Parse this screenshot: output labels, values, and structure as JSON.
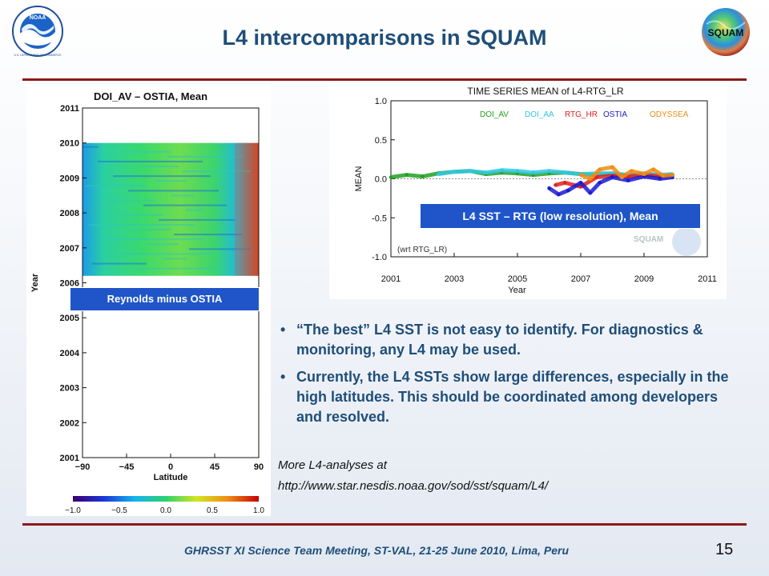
{
  "slide": {
    "title": "L4 intercomparisons in SQUAM",
    "page_number": "15",
    "footer": "GHRSST XI Science Team Meeting, ST-VAL, 21-25 June 2010, Lima, Peru"
  },
  "logos": {
    "noaa": "NOAA",
    "noaa_ring": "U.S. DEPARTMENT OF COMMERCE",
    "squam": "SQUAM"
  },
  "colors": {
    "title": "#1f4e79",
    "rule": "#8b1a1a",
    "caption_bg": "#1f55c8",
    "bullet_text": "#1f4e79"
  },
  "bullets": [
    "“The best” L4 SST is not easy to identify. For diagnostics & monitoring, any L4 may be used.",
    "Currently, the L4 SSTs show large differences, especially in the high latitudes. This should be coordinated among developers and resolved."
  ],
  "more": {
    "line1": "More L4-analyses at",
    "line2": "http://www.star.nesdis.noaa.gov/sod/sst/squam/L4/"
  },
  "chart_data": [
    {
      "type": "heatmap",
      "title": "DOI_AV – OSTIA, Mean",
      "caption": "Reynolds minus OSTIA",
      "xlabel": "Latitude",
      "ylabel": "Year",
      "x_ticks": [
        "−90",
        "−45",
        "0",
        "45",
        "90"
      ],
      "y_ticks": [
        "2011",
        "2010",
        "2009",
        "2008",
        "2007",
        "2006",
        "2005",
        "2004",
        "2003",
        "2002",
        "2001"
      ],
      "xlim": [
        -90,
        90
      ],
      "ylim": [
        2001,
        2011
      ],
      "data_extent": {
        "x": [
          -90,
          90
        ],
        "y": [
          2006.2,
          2010.0
        ]
      },
      "colorbar": {
        "ticks": [
          "−1.0",
          "−0.5",
          "0.0",
          "0.5",
          "1.0"
        ],
        "range": [
          -1.0,
          1.0
        ],
        "colors": [
          "#3a0070",
          "#1c36d8",
          "#14b4f0",
          "#2bd26e",
          "#d2e61e",
          "#f08c14",
          "#c80000"
        ]
      }
    },
    {
      "type": "line",
      "title": "TIME SERIES MEAN of L4-RTG_LR",
      "caption": "L4 SST – RTG (low resolution), Mean",
      "annotation": "(wrt RTG_LR)",
      "xlabel": "Year",
      "ylabel": "MEAN",
      "x_ticks": [
        "2001",
        "2003",
        "2005",
        "2007",
        "2009",
        "2011"
      ],
      "y_ticks": [
        "1.0",
        "0.5",
        "0.0",
        "-0.5",
        "-1.0"
      ],
      "xlim": [
        2001,
        2011
      ],
      "ylim": [
        -1.0,
        1.0
      ],
      "watermark": "SQUAM",
      "series": [
        {
          "name": "DOI_AV",
          "color": "#22a022",
          "x": [
            2001.0,
            2001.5,
            2002.0,
            2002.5,
            2003.0,
            2003.5,
            2004.0,
            2004.5,
            2005.0,
            2005.5,
            2006.0,
            2006.5,
            2007.0,
            2007.5,
            2008.0,
            2008.5,
            2009.0,
            2009.5,
            2009.9
          ],
          "y": [
            0.02,
            0.05,
            0.03,
            0.07,
            0.09,
            0.1,
            0.06,
            0.08,
            0.07,
            0.05,
            0.07,
            0.08,
            0.06,
            0.05,
            0.07,
            0.04,
            0.06,
            0.04,
            0.05
          ]
        },
        {
          "name": "DOI_AA",
          "color": "#30c8e6",
          "x": [
            2002.5,
            2003.0,
            2003.5,
            2004.0,
            2004.5,
            2005.0,
            2005.5,
            2006.0,
            2006.5,
            2007.0,
            2007.5,
            2008.0,
            2008.5,
            2009.0,
            2009.5,
            2009.9
          ],
          "y": [
            0.06,
            0.09,
            0.1,
            0.08,
            0.11,
            0.1,
            0.08,
            0.1,
            0.08,
            0.06,
            0.07,
            0.07,
            0.05,
            0.07,
            0.05,
            0.06
          ]
        },
        {
          "name": "RTG_HR",
          "color": "#e02020",
          "x": [
            2006.2,
            2006.5,
            2007.0,
            2007.5,
            2008.0,
            2008.5,
            2009.0,
            2009.5,
            2009.9
          ],
          "y": [
            -0.08,
            -0.05,
            -0.1,
            0.02,
            0.04,
            0.03,
            0.05,
            0.03,
            0.04
          ]
        },
        {
          "name": "OSTIA",
          "color": "#1a1ad2",
          "x": [
            2006.0,
            2006.3,
            2006.6,
            2007.0,
            2007.3,
            2007.6,
            2008.0,
            2008.5,
            2009.0,
            2009.5,
            2009.9
          ],
          "y": [
            -0.12,
            -0.2,
            -0.15,
            -0.05,
            -0.18,
            -0.05,
            0.02,
            -0.02,
            0.03,
            0.0,
            0.02
          ]
        },
        {
          "name": "ODYSSEA",
          "color": "#f08c14",
          "x": [
            2007.0,
            2007.3,
            2007.6,
            2008.0,
            2008.3,
            2008.6,
            2009.0,
            2009.3,
            2009.6,
            2009.9
          ],
          "y": [
            0.05,
            0.0,
            0.12,
            0.15,
            0.02,
            0.1,
            0.06,
            0.12,
            0.04,
            0.05
          ]
        }
      ]
    }
  ]
}
